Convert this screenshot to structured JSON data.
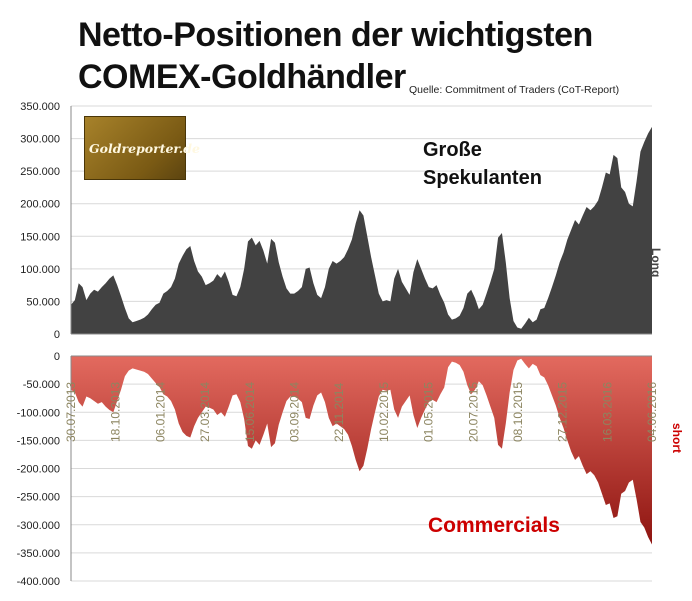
{
  "title_line1": "Netto-Positionen der wichtigsten",
  "title_line2": "COMEX-Goldhändler",
  "source": "Quelle: Commitment of Traders (CoT-Report)",
  "logo_text": "Goldreporter.de",
  "colors": {
    "long": "#424242",
    "short": "#b52a22",
    "short_light": "#e0665c",
    "date_label": "#8c8560"
  },
  "chart_data": [
    {
      "type": "area",
      "annotation": [
        "Große",
        "Spekulanten"
      ],
      "side_label": "Long",
      "ylim": [
        0,
        350000
      ],
      "yticks": [
        "350.000",
        "300.000",
        "250.000",
        "200.000",
        "150.000",
        "100.000",
        "50.000",
        "0"
      ],
      "grid": true,
      "values": [
        45000,
        52000,
        78000,
        72000,
        52000,
        62000,
        68000,
        65000,
        72000,
        78000,
        85000,
        90000,
        75000,
        58000,
        40000,
        24000,
        18000,
        20000,
        22000,
        25000,
        30000,
        38000,
        45000,
        48000,
        62000,
        66000,
        72000,
        85000,
        108000,
        120000,
        130000,
        135000,
        112000,
        96000,
        88000,
        75000,
        78000,
        82000,
        92000,
        86000,
        96000,
        80000,
        60000,
        58000,
        72000,
        100000,
        142000,
        148000,
        136000,
        143000,
        128000,
        108000,
        146000,
        140000,
        110000,
        88000,
        70000,
        62000,
        62000,
        66000,
        72000,
        100000,
        102000,
        78000,
        60000,
        55000,
        72000,
        100000,
        112000,
        108000,
        112000,
        118000,
        130000,
        145000,
        170000,
        190000,
        182000,
        150000,
        118000,
        90000,
        62000,
        50000,
        52000,
        50000,
        85000,
        100000,
        80000,
        70000,
        60000,
        95000,
        115000,
        100000,
        85000,
        72000,
        70000,
        75000,
        60000,
        48000,
        30000,
        22000,
        24000,
        28000,
        40000,
        62000,
        68000,
        55000,
        38000,
        45000,
        62000,
        80000,
        100000,
        148000,
        155000,
        110000,
        55000,
        20000,
        10000,
        8000,
        16000,
        25000,
        18000,
        22000,
        38000,
        40000,
        55000,
        72000,
        90000,
        110000,
        125000,
        145000,
        160000,
        175000,
        168000,
        182000,
        195000,
        190000,
        196000,
        205000,
        225000,
        248000,
        245000,
        275000,
        270000,
        225000,
        218000,
        200000,
        196000,
        235000,
        280000,
        295000,
        308000,
        318000
      ]
    },
    {
      "type": "area",
      "annotation": "Commercials",
      "side_label": "short",
      "ylim": [
        -400000,
        0
      ],
      "yticks": [
        "0",
        "-50.000",
        "-100.000",
        "-150.000",
        "-200.000",
        "-250.000",
        "-300.000",
        "-350.000",
        "-400.000"
      ],
      "grid": true,
      "x_labels": [
        "30.07.2013",
        "18.10.2013",
        "06.01.2014",
        "27.03.2014",
        "15.06.2014",
        "03.09.2014",
        "22.11.2014",
        "10.02.2015",
        "01.05.2015",
        "20.07.2015",
        "08.10.2015",
        "27.12.2015",
        "16.03.2016",
        "04.06.2016"
      ],
      "values": [
        -60000,
        -65000,
        -82000,
        -90000,
        -72000,
        -75000,
        -80000,
        -85000,
        -82000,
        -90000,
        -96000,
        -100000,
        -80000,
        -60000,
        -36000,
        -26000,
        -22000,
        -24000,
        -26000,
        -28000,
        -32000,
        -40000,
        -48000,
        -55000,
        -68000,
        -72000,
        -80000,
        -95000,
        -120000,
        -135000,
        -142000,
        -145000,
        -125000,
        -110000,
        -100000,
        -90000,
        -92000,
        -95000,
        -105000,
        -100000,
        -108000,
        -90000,
        -70000,
        -68000,
        -82000,
        -112000,
        -160000,
        -165000,
        -150000,
        -158000,
        -140000,
        -120000,
        -162000,
        -155000,
        -122000,
        -100000,
        -80000,
        -72000,
        -72000,
        -76000,
        -82000,
        -110000,
        -112000,
        -88000,
        -70000,
        -65000,
        -82000,
        -110000,
        -125000,
        -120000,
        -125000,
        -130000,
        -140000,
        -160000,
        -185000,
        -205000,
        -195000,
        -165000,
        -130000,
        -100000,
        -72000,
        -60000,
        -62000,
        -60000,
        -95000,
        -110000,
        -90000,
        -80000,
        -70000,
        -105000,
        -128000,
        -110000,
        -95000,
        -82000,
        -78000,
        -82000,
        -68000,
        -56000,
        -20000,
        -10000,
        -12000,
        -16000,
        -28000,
        -52000,
        -68000,
        -60000,
        -45000,
        -52000,
        -70000,
        -90000,
        -110000,
        -158000,
        -165000,
        -120000,
        -65000,
        -25000,
        -8000,
        -5000,
        -14000,
        -22000,
        -14000,
        -18000,
        -34000,
        -38000,
        -52000,
        -70000,
        -88000,
        -110000,
        -128000,
        -150000,
        -170000,
        -185000,
        -178000,
        -195000,
        -210000,
        -205000,
        -212000,
        -225000,
        -245000,
        -265000,
        -262000,
        -288000,
        -285000,
        -245000,
        -240000,
        -225000,
        -220000,
        -255000,
        -295000,
        -305000,
        -322000,
        -335000
      ]
    }
  ]
}
